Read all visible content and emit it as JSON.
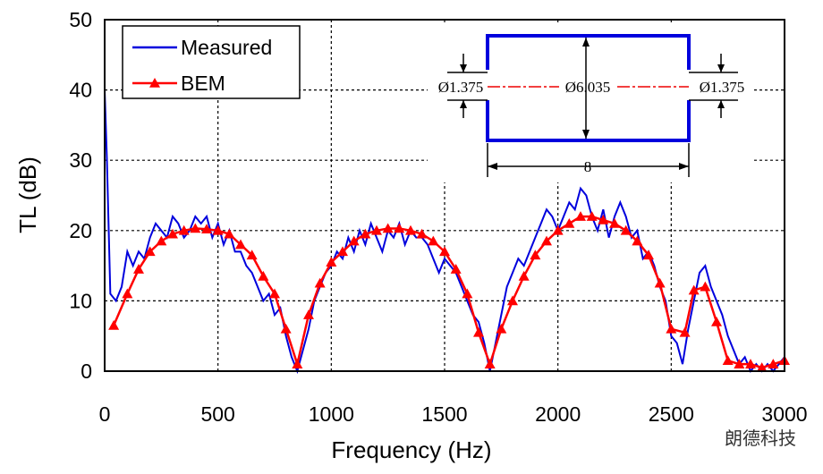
{
  "chart_data": {
    "type": "line",
    "xlabel": "Frequency (Hz)",
    "ylabel": "TL (dB)",
    "xlim": [
      0,
      3000
    ],
    "xticks": [
      0,
      500,
      1000,
      1500,
      2000,
      2500,
      3000
    ],
    "ylim": [
      0,
      50
    ],
    "yticks": [
      0,
      10,
      20,
      30,
      40,
      50
    ],
    "grid": true,
    "legend": "upper left",
    "series": [
      {
        "name": "Measured",
        "color": "#0000dd",
        "marker": "none",
        "x": [
          0,
          10,
          25,
          50,
          75,
          100,
          125,
          150,
          175,
          200,
          225,
          250,
          275,
          300,
          325,
          350,
          375,
          400,
          425,
          450,
          475,
          500,
          525,
          550,
          575,
          600,
          625,
          650,
          675,
          700,
          725,
          750,
          775,
          800,
          825,
          850,
          875,
          900,
          925,
          950,
          975,
          1000,
          1025,
          1050,
          1075,
          1100,
          1125,
          1150,
          1175,
          1200,
          1225,
          1250,
          1275,
          1300,
          1325,
          1350,
          1375,
          1400,
          1425,
          1450,
          1475,
          1500,
          1525,
          1550,
          1575,
          1600,
          1625,
          1650,
          1675,
          1700,
          1725,
          1750,
          1775,
          1800,
          1825,
          1850,
          1875,
          1900,
          1925,
          1950,
          1975,
          2000,
          2025,
          2050,
          2075,
          2100,
          2125,
          2150,
          2175,
          2200,
          2225,
          2250,
          2275,
          2300,
          2325,
          2350,
          2375,
          2400,
          2425,
          2450,
          2475,
          2500,
          2525,
          2550,
          2575,
          2600,
          2625,
          2650,
          2675,
          2700,
          2725,
          2750,
          2775,
          2800,
          2825,
          2850,
          2875,
          2900,
          2925,
          2950,
          2975,
          3000
        ],
        "values": [
          40,
          30,
          11,
          10,
          12,
          17,
          15,
          17,
          16,
          19,
          21,
          20,
          19,
          22,
          21,
          19,
          20,
          22,
          21,
          22,
          19,
          21,
          18,
          20,
          17,
          17,
          15,
          14,
          12,
          10,
          11,
          8,
          9,
          5,
          2,
          0,
          3,
          6,
          10,
          12,
          14,
          15,
          17,
          16,
          19,
          17,
          20,
          18,
          21,
          19,
          17,
          20,
          19,
          21,
          18,
          20,
          19,
          19,
          18,
          16,
          14,
          16,
          15,
          14,
          12,
          10,
          8,
          7,
          4,
          0,
          4,
          8,
          12,
          14,
          16,
          15,
          17,
          19,
          21,
          23,
          22,
          20,
          22,
          24,
          23,
          26,
          25,
          22,
          20,
          23,
          19,
          22,
          24,
          22,
          19,
          20,
          16,
          17,
          15,
          12,
          10,
          5,
          4,
          1,
          6,
          10,
          14,
          15,
          12,
          10,
          8,
          5,
          3,
          1,
          2,
          0,
          1,
          0,
          1,
          0,
          1,
          2
        ]
      },
      {
        "name": "BEM",
        "color": "#ff0000",
        "marker": "triangle",
        "x": [
          40,
          100,
          150,
          200,
          250,
          300,
          350,
          400,
          450,
          500,
          550,
          600,
          650,
          700,
          750,
          800,
          850,
          900,
          950,
          1000,
          1050,
          1100,
          1150,
          1200,
          1250,
          1300,
          1350,
          1400,
          1450,
          1500,
          1550,
          1600,
          1650,
          1700,
          1750,
          1800,
          1850,
          1900,
          1950,
          2000,
          2050,
          2100,
          2150,
          2200,
          2250,
          2300,
          2350,
          2400,
          2450,
          2500,
          2560,
          2600,
          2650,
          2700,
          2750,
          2800,
          2850,
          2900,
          2950,
          3000
        ],
        "values": [
          6.5,
          11,
          14.5,
          17,
          18.5,
          19.5,
          20,
          20.3,
          20.2,
          20,
          19.5,
          18,
          16.5,
          13.5,
          11,
          6,
          1,
          8,
          12.5,
          15.5,
          17,
          18.5,
          19.5,
          20,
          20.3,
          20.3,
          20,
          19.5,
          18.5,
          17,
          14.5,
          11,
          5.5,
          1,
          6,
          10,
          13.5,
          16.5,
          18.5,
          20,
          21,
          22,
          22,
          21.5,
          21,
          20,
          18.5,
          16.5,
          12.5,
          6,
          5.5,
          11.5,
          12,
          7,
          1.5,
          1,
          1,
          0.5,
          1,
          1.5
        ]
      }
    ],
    "inset": {
      "inlet": "Ø1.375",
      "chamber": "Ø6.035",
      "outlet": "Ø1.375",
      "length": "8"
    },
    "watermark": "朗德科技"
  }
}
